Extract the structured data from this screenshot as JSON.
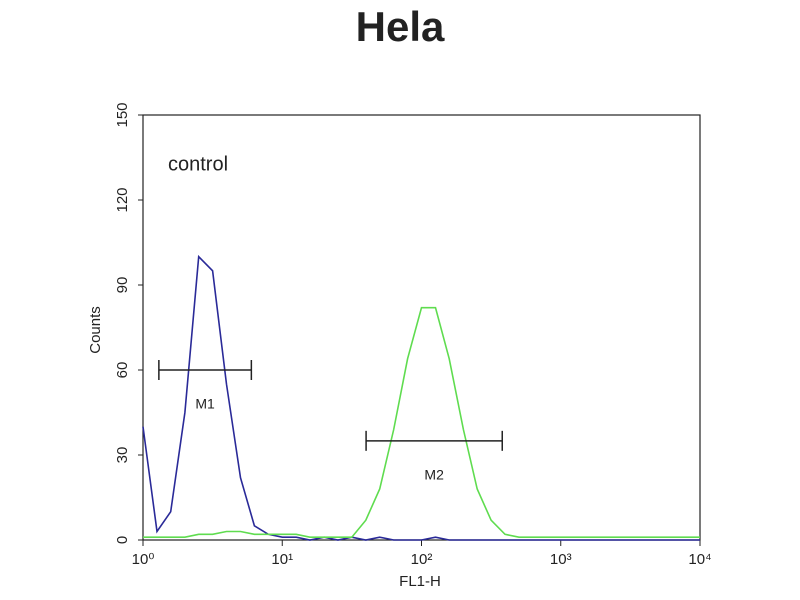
{
  "chart_data": {
    "type": "line",
    "title": "Hela",
    "x_label": "FL1-H",
    "y_label": "Counts",
    "x_log": true,
    "xlim": [
      1,
      10000
    ],
    "ylim": [
      0,
      150
    ],
    "xticks": [
      {
        "value": 1,
        "label": "10⁰"
      },
      {
        "value": 10,
        "label": "10¹"
      },
      {
        "value": 100,
        "label": "10²"
      },
      {
        "value": 1000,
        "label": "10³"
      },
      {
        "value": 10000,
        "label": "10⁴"
      }
    ],
    "yticks": [
      0,
      30,
      60,
      90,
      120,
      150
    ],
    "x": [
      1,
      1.26,
      1.58,
      2,
      2.51,
      3.16,
      3.98,
      5.01,
      6.31,
      7.94,
      10,
      12.6,
      15.8,
      20,
      25.1,
      31.6,
      39.8,
      50.1,
      63.1,
      79.4,
      100,
      126,
      158,
      200,
      251,
      316,
      398,
      501,
      631,
      794,
      1000,
      1260,
      1580,
      2000,
      2510,
      3160,
      3980,
      5010,
      6310,
      7940,
      10000
    ],
    "series": [
      {
        "name": "control",
        "color": "#2a2a98",
        "values": [
          40,
          3,
          10,
          45,
          100,
          95,
          55,
          22,
          5,
          2,
          1,
          1,
          0,
          1,
          0,
          1,
          0,
          1,
          0,
          0,
          0,
          1,
          0,
          0,
          0,
          0,
          0,
          0,
          0,
          0,
          0,
          0,
          0,
          0,
          0,
          0,
          0,
          0,
          0,
          0,
          0
        ]
      },
      {
        "color": "#5fdc4f",
        "values": [
          1,
          1,
          1,
          1,
          2,
          2,
          3,
          3,
          2,
          2,
          2,
          2,
          1,
          1,
          1,
          1,
          7,
          18,
          39,
          64,
          82,
          82,
          64,
          39,
          18,
          7,
          2,
          1,
          1,
          1,
          1,
          1,
          1,
          1,
          1,
          1,
          1,
          1,
          1,
          1,
          1
        ]
      }
    ],
    "markers": [
      {
        "label": "M1",
        "x": [
          1.3,
          6
        ],
        "y": 60
      },
      {
        "label": "M2",
        "x": [
          40,
          380
        ],
        "y": 35
      }
    ]
  }
}
